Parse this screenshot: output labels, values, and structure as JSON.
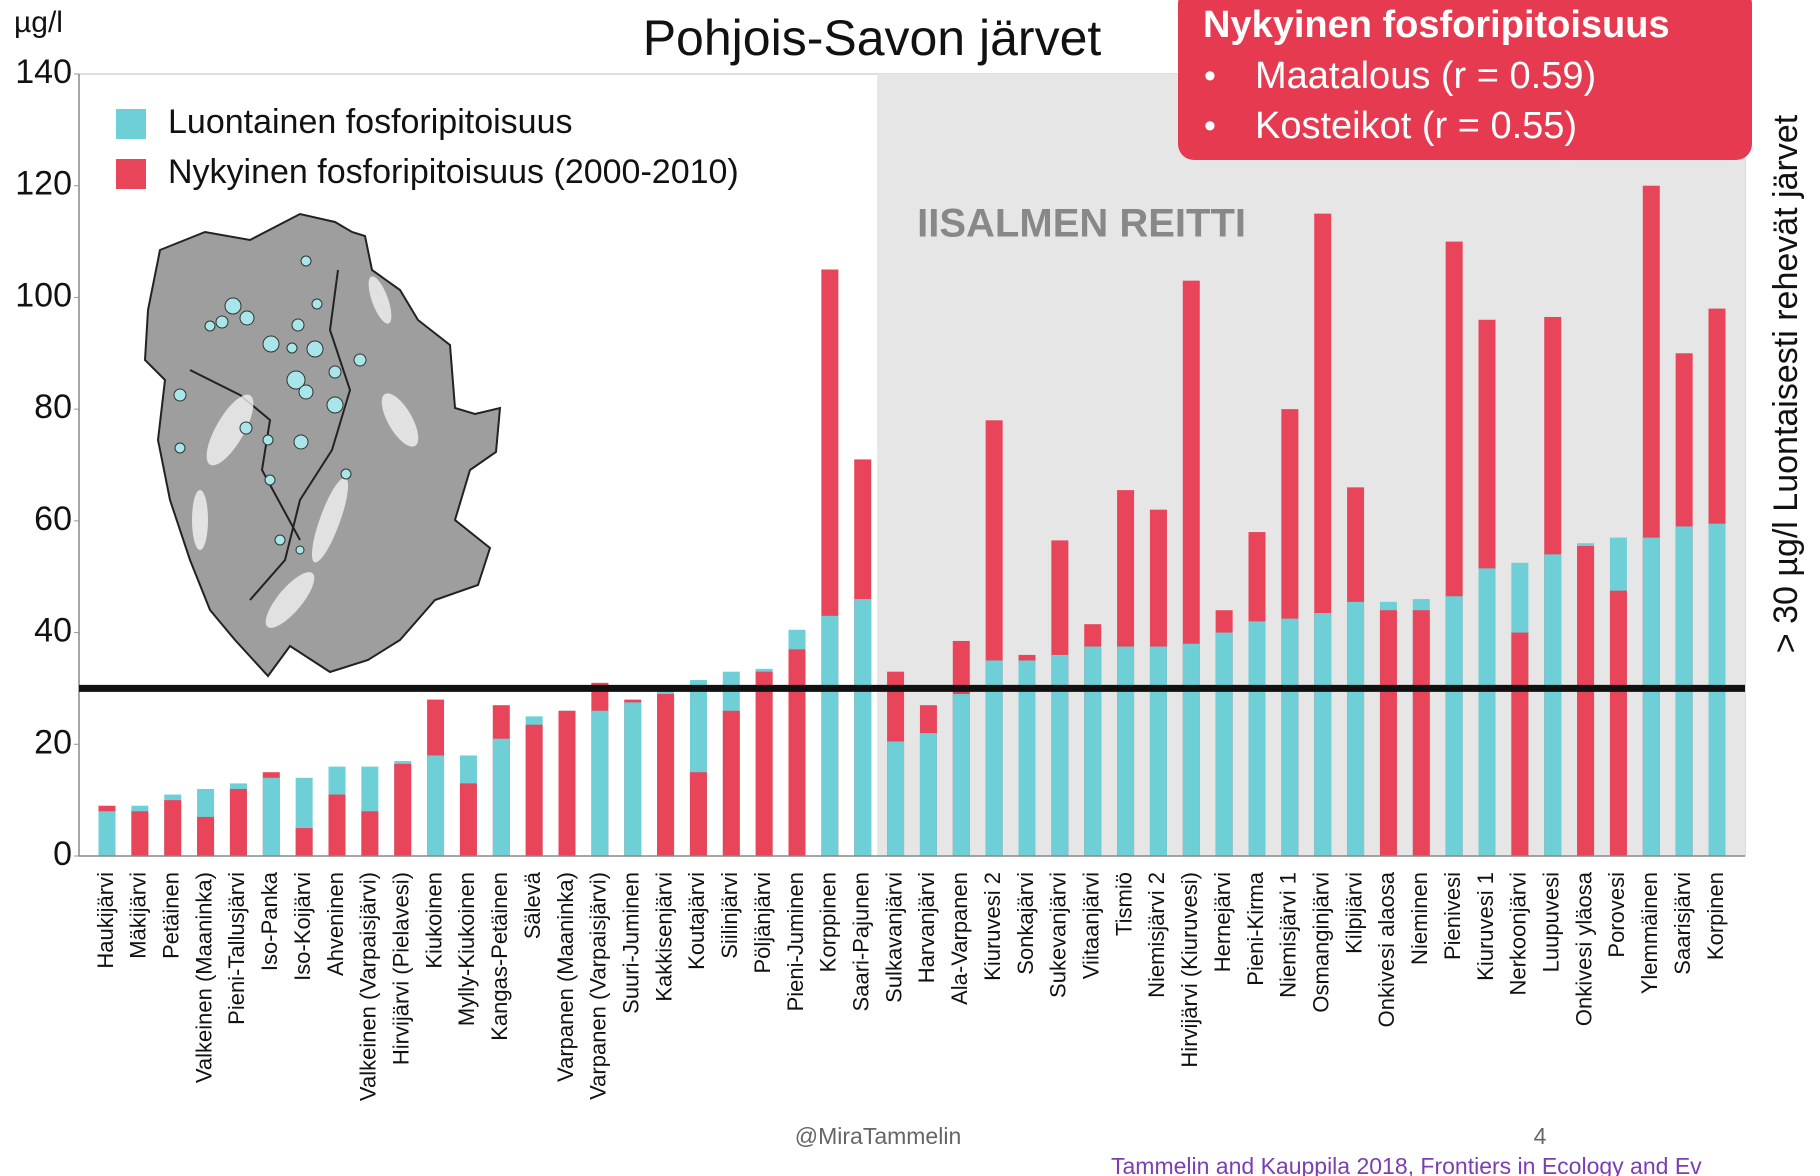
{
  "chart_data": {
    "type": "bar",
    "title": "Pohjois-Savon järvet",
    "y_unit": "µg/l",
    "categories": [
      "Haukijärvi",
      "Mäkijärvi",
      "Petäinen",
      "Valkeinen (Maaninka)",
      "Pieni-Tallusjärvi",
      "Iso-Panka",
      "Iso-Koijärvi",
      "Ahveninen",
      "Valkeinen (Varpaisjärvi)",
      "Hirvijärvi (Pielavesi)",
      "Kiukoinen",
      "Mylly-Kiukoinen",
      "Kangas-Petäinen",
      "Sälevä",
      "Varpanen (Maaninka)",
      "Varpanen (Varpaisjärvi)",
      "Suuri-Juminen",
      "Kakkisenjärvi",
      "Koutajärvi",
      "Siilinjärvi",
      "Pöljänjärvi",
      "Pieni-Juminen",
      "Korppinen",
      "Saari-Pajunen",
      "Sulkavanjärvi",
      "Harvanjärvi",
      "Ala-Varpanen",
      "Kiuruvesi 2",
      "Sonkajärvi",
      "Sukevanjärvi",
      "Viitaanjärvi",
      "Tismiö",
      "Niemisjärvi 2",
      "Hirvijärvi (Kiuruvesi)",
      "Hernejärvi",
      "Pieni-Kirma",
      "Niemisjärvi 1",
      "Osmanginjärvi",
      "Kilpijärvi",
      "Onkivesi alaosa",
      "Nieminen",
      "Pienivesi",
      "Kiuruvesi 1",
      "Nerkoonjärvi",
      "Luupuvesi",
      "Onkivesi yläosa",
      "Porovesi",
      "Ylemmäinen",
      "Saarisjärvi",
      "Korpinen"
    ],
    "series": [
      {
        "name": "Luontainen fosforipitoisuus",
        "color": "#6ecfd6",
        "values": [
          8,
          9,
          11,
          12,
          13,
          14,
          14,
          16,
          16,
          17,
          18,
          18,
          21,
          25,
          26,
          26,
          27.5,
          30,
          31.5,
          33,
          33.5,
          40.5,
          43,
          46,
          20.5,
          22,
          29,
          35,
          35,
          36,
          37.5,
          37.5,
          37.5,
          38,
          40,
          42,
          42.5,
          43.5,
          45.5,
          45.5,
          46,
          46.5,
          51.5,
          52.5,
          54,
          56,
          57,
          57,
          59,
          59.5
        ]
      },
      {
        "name": "Nykyinen fosforipitoisuus (2000-2010)",
        "color": "#e8455a",
        "values": [
          9,
          8,
          10,
          7,
          12,
          15,
          5,
          11,
          8,
          16.5,
          28,
          13,
          27,
          23.5,
          26,
          31,
          28,
          29,
          15,
          26,
          33,
          37,
          105,
          71,
          33,
          27,
          38.5,
          78,
          36,
          56.5,
          41.5,
          65.5,
          62,
          103,
          44,
          58,
          80,
          115,
          66,
          44,
          44,
          110,
          96,
          40,
          96.5,
          55.5,
          47.5,
          120,
          90,
          98
        ]
      }
    ],
    "ylim": [
      0,
      140
    ],
    "yticks": [
      0,
      20,
      40,
      60,
      80,
      100,
      120,
      140
    ],
    "threshold": 30,
    "threshold_label": "> 30 µg/l Luontaisesti rehevät järvet",
    "region": {
      "label": "IISALMEN REITTI",
      "start": "Sulkavanjärvi"
    },
    "legend": "top-left",
    "callout": {
      "title": "Nykyinen fosforipitoisuus",
      "items": [
        "Maatalous (r = 0.59)",
        "Kosteikot (r = 0.55)"
      ]
    },
    "footer": {
      "handle": "@MiraTammelin",
      "page": "4",
      "citation": "Tammelin and Kauppila 2018, Frontiers in Ecology and Ev"
    }
  }
}
